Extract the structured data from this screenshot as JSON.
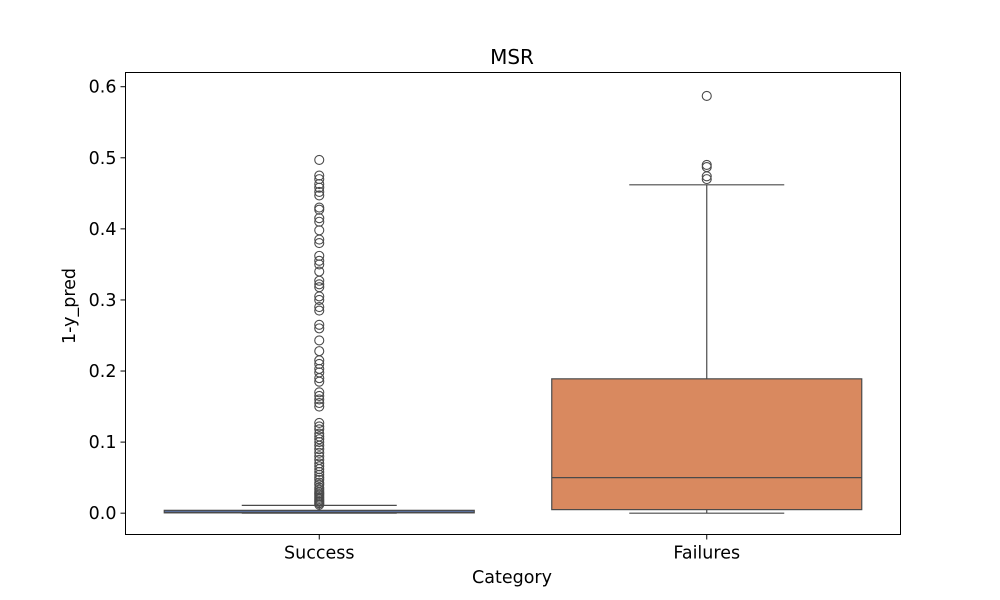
{
  "chart_data": {
    "type": "box",
    "title": "MSR",
    "xlabel": "Category",
    "ylabel": "1-y_pred",
    "ylim": [
      -0.03,
      0.62
    ],
    "yticks": [
      0.0,
      0.1,
      0.2,
      0.3,
      0.4,
      0.5,
      0.6
    ],
    "ytick_labels": [
      "0.0",
      "0.1",
      "0.2",
      "0.3",
      "0.4",
      "0.5",
      "0.6"
    ],
    "grid": false,
    "categories": [
      "Success",
      "Failures"
    ],
    "boxes": [
      {
        "category": "Success",
        "color": "#5a73a7",
        "whisker_low": 0.0,
        "q1": 0.0005,
        "median": 0.001,
        "q3": 0.004,
        "whisker_high": 0.011,
        "outliers": [
          0.012,
          0.014,
          0.016,
          0.018,
          0.02,
          0.022,
          0.024,
          0.026,
          0.028,
          0.03,
          0.033,
          0.036,
          0.04,
          0.043,
          0.047,
          0.05,
          0.054,
          0.058,
          0.062,
          0.066,
          0.07,
          0.075,
          0.08,
          0.085,
          0.09,
          0.095,
          0.1,
          0.104,
          0.108,
          0.112,
          0.118,
          0.122,
          0.127,
          0.15,
          0.155,
          0.16,
          0.165,
          0.17,
          0.185,
          0.19,
          0.198,
          0.203,
          0.21,
          0.215,
          0.228,
          0.243,
          0.26,
          0.265,
          0.285,
          0.29,
          0.3,
          0.305,
          0.318,
          0.322,
          0.327,
          0.34,
          0.35,
          0.355,
          0.362,
          0.38,
          0.385,
          0.398,
          0.41,
          0.415,
          0.427,
          0.43,
          0.447,
          0.452,
          0.458,
          0.463,
          0.47,
          0.475,
          0.497
        ]
      },
      {
        "category": "Failures",
        "color": "#d9895f",
        "whisker_low": 0.0,
        "q1": 0.005,
        "median": 0.05,
        "q3": 0.189,
        "whisker_high": 0.462,
        "outliers": [
          0.47,
          0.474,
          0.487,
          0.49,
          0.587
        ]
      }
    ]
  }
}
